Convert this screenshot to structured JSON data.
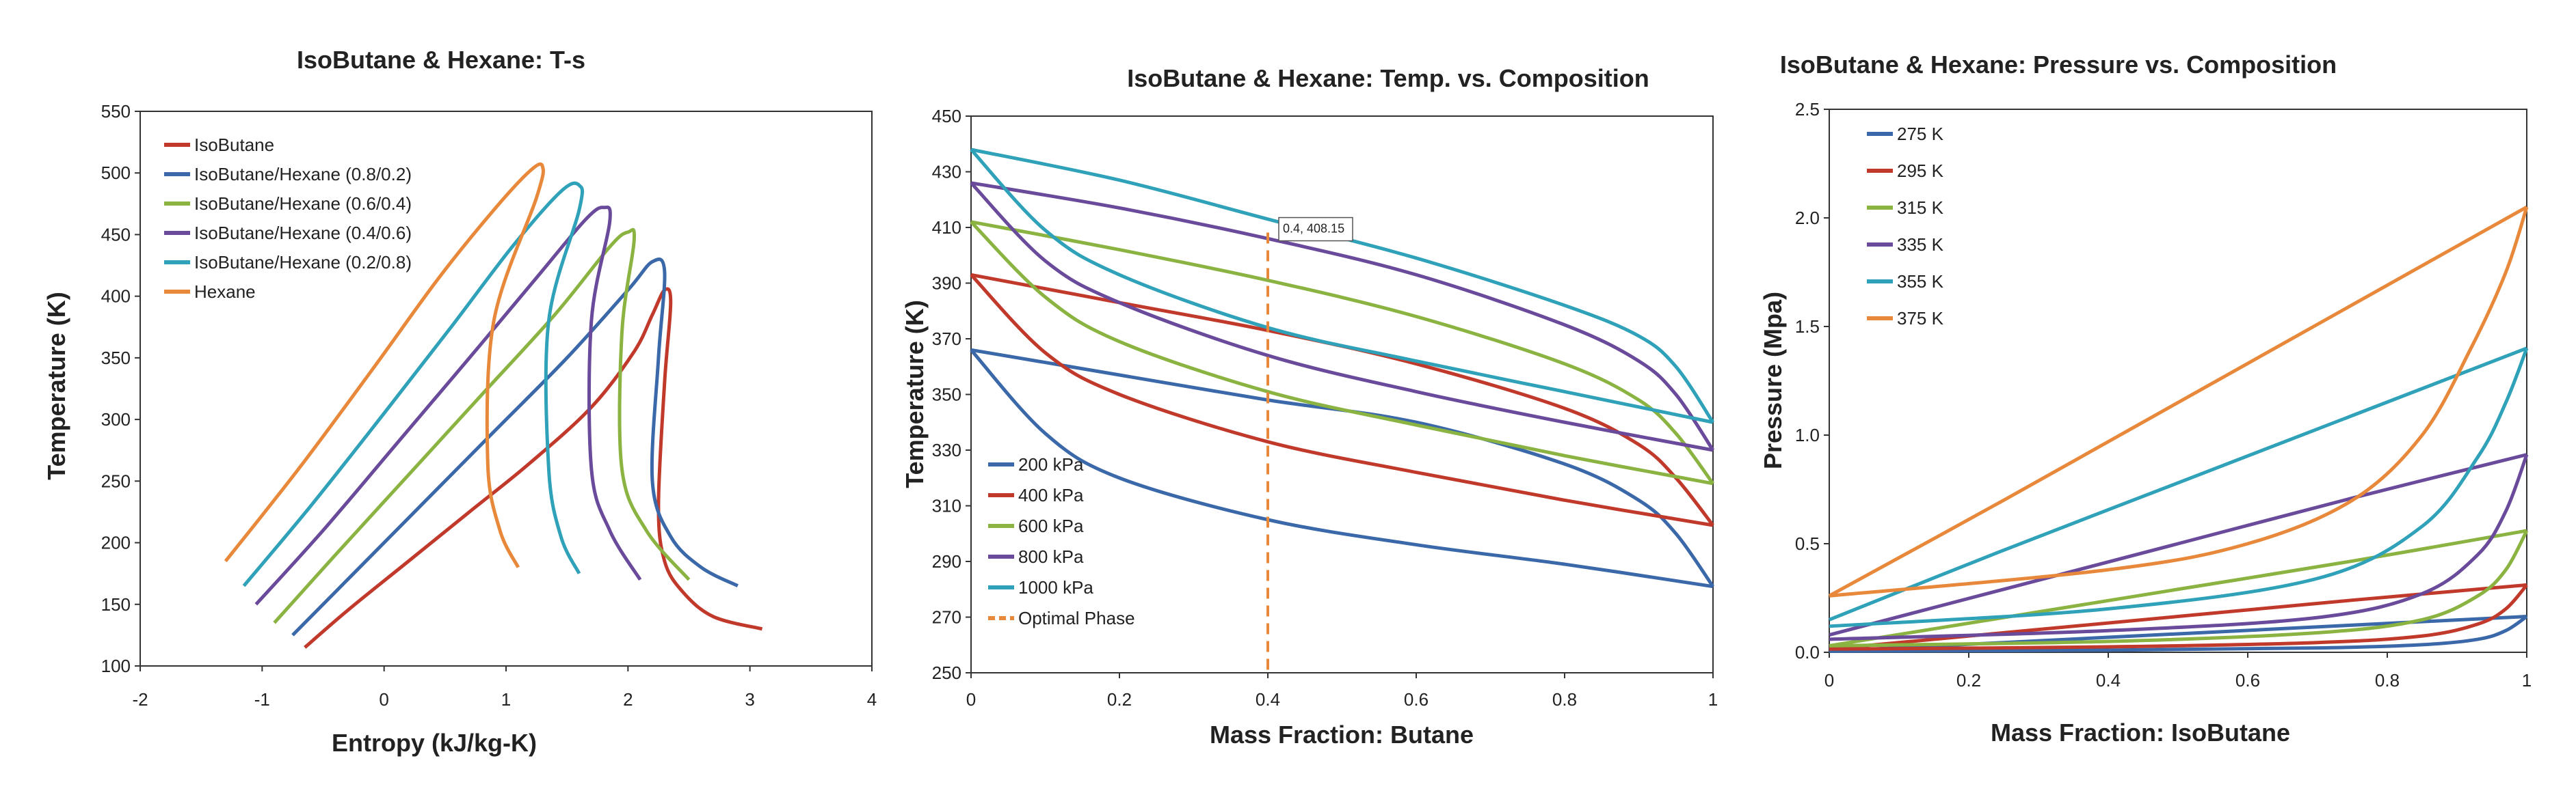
{
  "chart_data": [
    {
      "type": "line",
      "title": "IsoButane & Hexane: T-s",
      "xlabel": "Entropy (kJ/kg-K)",
      "ylabel": "Temperature (K)",
      "xlim": [
        -2,
        4
      ],
      "ylim": [
        100,
        550
      ],
      "xticks": [
        "-2",
        "-1",
        "0",
        "1",
        "2",
        "3",
        "4"
      ],
      "yticks": [
        "100",
        "150",
        "200",
        "250",
        "300",
        "350",
        "400",
        "450",
        "500",
        "550"
      ],
      "legend_position": "top-left",
      "series": [
        {
          "name": "IsoButane",
          "color": "#c0392b",
          "x": [
            -0.65,
            -0.3,
            0.2,
            0.7,
            1.2,
            1.7,
            2.05,
            2.2,
            2.3,
            2.35,
            2.3,
            2.25,
            2.3,
            2.45,
            2.7,
            3.1
          ],
          "y": [
            115,
            145,
            185,
            225,
            265,
            310,
            355,
            385,
            405,
            395,
            330,
            230,
            185,
            160,
            140,
            130
          ]
        },
        {
          "name": "IsoButane/Hexane (0.8/0.2)",
          "color": "#3a68a8",
          "x": [
            -0.75,
            -0.3,
            0.3,
            0.9,
            1.5,
            2.0,
            2.2,
            2.3,
            2.25,
            2.2,
            2.35,
            2.6,
            2.9
          ],
          "y": [
            125,
            170,
            230,
            290,
            350,
            405,
            428,
            420,
            350,
            250,
            205,
            180,
            165
          ]
        },
        {
          "name": "IsoButane/Hexane (0.6/0.4)",
          "color": "#8ab342",
          "x": [
            -0.9,
            -0.4,
            0.2,
            0.8,
            1.4,
            1.85,
            2.0,
            2.05,
            1.95,
            1.95,
            2.15,
            2.5
          ],
          "y": [
            135,
            190,
            255,
            320,
            385,
            440,
            452,
            445,
            370,
            260,
            210,
            170
          ]
        },
        {
          "name": "IsoButane/Hexane (0.4/0.6)",
          "color": "#6a4a9a",
          "x": [
            -1.05,
            -0.5,
            0.1,
            0.7,
            1.25,
            1.65,
            1.8,
            1.85,
            1.7,
            1.7,
            1.85,
            2.1
          ],
          "y": [
            150,
            210,
            280,
            350,
            415,
            462,
            472,
            460,
            380,
            260,
            210,
            170
          ]
        },
        {
          "name": "IsoButane/Hexane (0.2/0.8)",
          "color": "#2fa1b8",
          "x": [
            -1.15,
            -0.6,
            0.0,
            0.55,
            1.05,
            1.45,
            1.6,
            1.6,
            1.35,
            1.35,
            1.45,
            1.6
          ],
          "y": [
            165,
            230,
            305,
            375,
            440,
            485,
            490,
            470,
            380,
            260,
            205,
            175
          ]
        },
        {
          "name": "Hexane",
          "color": "#e8883a",
          "x": [
            -1.3,
            -0.7,
            -0.1,
            0.45,
            0.9,
            1.2,
            1.3,
            1.25,
            0.9,
            0.85,
            0.95,
            1.1
          ],
          "y": [
            185,
            260,
            340,
            415,
            470,
            502,
            505,
            480,
            380,
            265,
            210,
            180
          ]
        }
      ]
    },
    {
      "type": "line",
      "title": "IsoButane & Hexane: Temp. vs. Composition",
      "xlabel": "Mass Fraction: Butane",
      "ylabel": "Temperature (K)",
      "xlim": [
        0,
        1
      ],
      "ylim": [
        250,
        450
      ],
      "xticks": [
        "0",
        "0.2",
        "0.4",
        "0.6",
        "0.8",
        "1"
      ],
      "yticks": [
        "250",
        "270",
        "290",
        "310",
        "330",
        "350",
        "370",
        "390",
        "410",
        "430",
        "450"
      ],
      "legend_position": "bottom-left",
      "annotation": {
        "text": "0.4, 408.15",
        "x": 0.4,
        "y": 408.15
      },
      "optimal_phase": {
        "x": 0.4,
        "y_top": 408.15
      },
      "series": [
        {
          "name": "200 kPa",
          "color": "#3a68a8",
          "dew": {
            "x": [
              0,
              0.2,
              0.4,
              0.6,
              0.8,
              0.9,
              0.95,
              1.0
            ],
            "y": [
              366,
              357,
              348,
              340,
              325,
              312,
              300,
              281
            ]
          },
          "bubble": {
            "x": [
              0,
              0.1,
              0.2,
              0.4,
              0.6,
              0.8,
              1.0
            ],
            "y": [
              366,
              336,
              320,
              305,
              296,
              289,
              281
            ]
          }
        },
        {
          "name": "400 kPa",
          "color": "#c0392b",
          "dew": {
            "x": [
              0,
              0.2,
              0.4,
              0.6,
              0.8,
              0.9,
              0.95,
              1.0
            ],
            "y": [
              393,
              383,
              373,
              361,
              345,
              332,
              320,
              303
            ]
          },
          "bubble": {
            "x": [
              0,
              0.1,
              0.2,
              0.4,
              0.6,
              0.8,
              1.0
            ],
            "y": [
              393,
              365,
              350,
              333,
              322,
              312,
              303
            ]
          }
        },
        {
          "name": "600 kPa",
          "color": "#8ab342",
          "dew": {
            "x": [
              0,
              0.2,
              0.4,
              0.6,
              0.8,
              0.9,
              0.95,
              1.0
            ],
            "y": [
              412,
              402,
              391,
              378,
              361,
              348,
              336,
              318
            ]
          },
          "bubble": {
            "x": [
              0,
              0.1,
              0.2,
              0.4,
              0.6,
              0.8,
              1.0
            ],
            "y": [
              412,
              385,
              369,
              351,
              339,
              328,
              318
            ]
          }
        },
        {
          "name": "800 kPa",
          "color": "#6a4a9a",
          "dew": {
            "x": [
              0,
              0.2,
              0.4,
              0.6,
              0.8,
              0.9,
              0.95,
              1.0
            ],
            "y": [
              426,
              417,
              406,
              393,
              375,
              362,
              350,
              330
            ]
          },
          "bubble": {
            "x": [
              0,
              0.1,
              0.2,
              0.4,
              0.6,
              0.8,
              1.0
            ],
            "y": [
              426,
              398,
              383,
              364,
              351,
              340,
              330
            ]
          }
        },
        {
          "name": "1000 kPa",
          "color": "#2fa1b8",
          "dew": {
            "x": [
              0,
              0.2,
              0.4,
              0.6,
              0.8,
              0.9,
              0.95,
              1.0
            ],
            "y": [
              438,
              427,
              413,
              399,
              382,
              371,
              360,
              340
            ]
          },
          "bubble": {
            "x": [
              0,
              0.1,
              0.2,
              0.4,
              0.6,
              0.8,
              1.0
            ],
            "y": [
              438,
              409,
              393,
              374,
              362,
              351,
              340
            ]
          }
        },
        {
          "name": "Optimal Phase",
          "color": "#e8883a",
          "style": "dashed"
        }
      ]
    },
    {
      "type": "line",
      "title": "IsoButane & Hexane: Pressure vs. Composition",
      "xlabel": "Mass Fraction: IsoButane",
      "ylabel": "Pressure (Mpa)",
      "xlim": [
        0,
        1
      ],
      "ylim": [
        0,
        2.5
      ],
      "xticks": [
        "0",
        "0.2",
        "0.4",
        "0.6",
        "0.8",
        "1"
      ],
      "yticks": [
        "0.0",
        "0.5",
        "1.0",
        "1.5",
        "2.0",
        "2.5"
      ],
      "legend_position": "top-left",
      "series": [
        {
          "name": "275 K",
          "color": "#3a68a8",
          "bubble": {
            "x": [
              0,
              0.25,
              0.5,
              0.75,
              1.0
            ],
            "y": [
              0.005,
              0.045,
              0.085,
              0.125,
              0.165
            ]
          },
          "dew": {
            "x": [
              0,
              0.4,
              0.7,
              0.85,
              0.93,
              0.97,
              1.0
            ],
            "y": [
              0.005,
              0.01,
              0.02,
              0.035,
              0.06,
              0.1,
              0.165
            ]
          }
        },
        {
          "name": "295 K",
          "color": "#c0392b",
          "bubble": {
            "x": [
              0,
              0.25,
              0.5,
              0.75,
              1.0
            ],
            "y": [
              0.015,
              0.09,
              0.165,
              0.24,
              0.31
            ]
          },
          "dew": {
            "x": [
              0,
              0.4,
              0.7,
              0.85,
              0.93,
              0.97,
              1.0
            ],
            "y": [
              0.015,
              0.025,
              0.045,
              0.075,
              0.13,
              0.2,
              0.31
            ]
          }
        },
        {
          "name": "315 K",
          "color": "#8ab342",
          "bubble": {
            "x": [
              0,
              0.25,
              0.5,
              0.75,
              1.0
            ],
            "y": [
              0.03,
              0.16,
              0.29,
              0.42,
              0.56
            ]
          },
          "dew": {
            "x": [
              0,
              0.4,
              0.7,
              0.85,
              0.93,
              0.97,
              1.0
            ],
            "y": [
              0.03,
              0.05,
              0.09,
              0.15,
              0.26,
              0.38,
              0.56
            ]
          }
        },
        {
          "name": "335 K",
          "color": "#6a4a9a",
          "bubble": {
            "x": [
              0,
              0.25,
              0.5,
              0.75,
              1.0
            ],
            "y": [
              0.08,
              0.29,
              0.5,
              0.71,
              0.91
            ]
          },
          "dew": {
            "x": [
              0,
              0.4,
              0.7,
              0.85,
              0.93,
              0.97,
              1.0
            ],
            "y": [
              0.06,
              0.1,
              0.16,
              0.27,
              0.45,
              0.65,
              0.91
            ]
          }
        },
        {
          "name": "355 K",
          "color": "#2fa1b8",
          "bubble": {
            "x": [
              0,
              0.25,
              0.5,
              0.75,
              1.0
            ],
            "y": [
              0.15,
              0.47,
              0.78,
              1.09,
              1.4
            ]
          },
          "dew": {
            "x": [
              0,
              0.4,
              0.7,
              0.85,
              0.93,
              0.97,
              1.0
            ],
            "y": [
              0.12,
              0.2,
              0.34,
              0.58,
              0.9,
              1.15,
              1.4
            ]
          }
        },
        {
          "name": "375 K",
          "color": "#e8883a",
          "bubble": {
            "x": [
              0,
              0.25,
              0.5,
              0.75,
              1.0
            ],
            "y": [
              0.26,
              0.7,
              1.15,
              1.6,
              2.05
            ]
          },
          "dew": {
            "x": [
              0,
              0.4,
              0.6,
              0.75,
              0.85,
              0.92,
              0.97,
              1.0
            ],
            "y": [
              0.26,
              0.38,
              0.5,
              0.7,
              1.0,
              1.4,
              1.75,
              2.05
            ]
          }
        }
      ]
    }
  ]
}
